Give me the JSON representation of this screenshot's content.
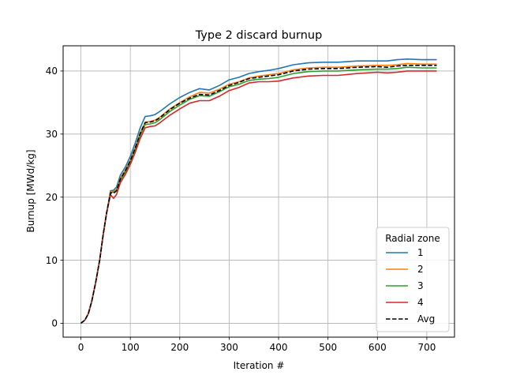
{
  "chart_data": {
    "type": "line",
    "title": "Type 2 discard burnup",
    "xlabel": "Iteration #",
    "ylabel": "Burnup [MWd/kg]",
    "xlim": [
      -36,
      756
    ],
    "ylim": [
      -2.2,
      44
    ],
    "xticks": [
      0,
      100,
      200,
      300,
      400,
      500,
      600,
      700
    ],
    "yticks": [
      0,
      10,
      20,
      30,
      40
    ],
    "grid": true,
    "legend": {
      "title": "Radial zone",
      "placement": "lower-right"
    },
    "series": [
      {
        "name": "1",
        "color": "#1f77b4",
        "dash": "solid",
        "x": [
          0,
          8,
          15,
          22,
          30,
          38,
          45,
          52,
          60,
          66,
          72,
          80,
          90,
          100,
          110,
          120,
          130,
          140,
          150,
          160,
          180,
          200,
          220,
          240,
          260,
          280,
          300,
          320,
          340,
          360,
          380,
          400,
          430,
          460,
          490,
          520,
          560,
          600,
          620,
          640,
          660,
          690,
          720
        ],
        "values": [
          0,
          0.5,
          1.5,
          3.5,
          6.5,
          10,
          14,
          17.5,
          21,
          21.1,
          21.6,
          23.5,
          24.8,
          26.5,
          28.6,
          31,
          32.8,
          32.9,
          33.1,
          33.6,
          34.8,
          35.8,
          36.6,
          37.2,
          37.0,
          37.7,
          38.6,
          39.0,
          39.6,
          39.9,
          40.1,
          40.4,
          41.0,
          41.3,
          41.4,
          41.4,
          41.6,
          41.6,
          41.6,
          41.8,
          41.9,
          41.8,
          41.8
        ]
      },
      {
        "name": "2",
        "color": "#ff7f0e",
        "dash": "solid",
        "x": [
          0,
          8,
          15,
          22,
          30,
          38,
          45,
          52,
          60,
          66,
          72,
          80,
          90,
          100,
          110,
          120,
          130,
          140,
          150,
          160,
          180,
          200,
          220,
          240,
          260,
          280,
          300,
          320,
          340,
          360,
          380,
          400,
          430,
          460,
          490,
          520,
          560,
          600,
          620,
          640,
          660,
          690,
          720
        ],
        "values": [
          0,
          0.5,
          1.5,
          3.5,
          6.5,
          10,
          14,
          17.5,
          20.8,
          20.9,
          21.2,
          23.0,
          24.3,
          25.9,
          27.9,
          30.2,
          31.9,
          32.0,
          32.2,
          32.7,
          34.0,
          35.0,
          35.9,
          36.6,
          36.5,
          37.1,
          37.9,
          38.3,
          38.9,
          39.2,
          39.4,
          39.6,
          40.2,
          40.5,
          40.6,
          40.6,
          40.8,
          40.9,
          40.9,
          41.0,
          41.2,
          41.1,
          41.1
        ]
      },
      {
        "name": "3",
        "color": "#2ca02c",
        "dash": "solid",
        "x": [
          0,
          8,
          15,
          22,
          30,
          38,
          45,
          52,
          60,
          66,
          72,
          80,
          90,
          100,
          110,
          120,
          130,
          140,
          150,
          160,
          180,
          200,
          220,
          240,
          260,
          280,
          300,
          320,
          340,
          360,
          380,
          400,
          430,
          460,
          490,
          520,
          560,
          600,
          620,
          640,
          660,
          690,
          720
        ],
        "values": [
          0,
          0.5,
          1.5,
          3.5,
          6.5,
          10,
          14,
          17.5,
          20.7,
          20.8,
          21.0,
          22.7,
          24.0,
          25.6,
          27.6,
          29.8,
          31.5,
          31.6,
          31.8,
          32.3,
          33.6,
          34.6,
          35.5,
          36.1,
          36.0,
          36.7,
          37.5,
          37.9,
          38.5,
          38.7,
          38.8,
          39.0,
          39.6,
          39.9,
          40.0,
          40.0,
          40.2,
          40.3,
          40.3,
          40.4,
          40.6,
          40.5,
          40.5
        ]
      },
      {
        "name": "4",
        "color": "#d62728",
        "dash": "solid",
        "x": [
          0,
          8,
          15,
          22,
          30,
          38,
          45,
          52,
          60,
          66,
          72,
          80,
          90,
          100,
          110,
          120,
          130,
          140,
          150,
          160,
          180,
          200,
          220,
          240,
          260,
          280,
          300,
          320,
          340,
          360,
          380,
          400,
          430,
          460,
          490,
          520,
          560,
          600,
          620,
          640,
          660,
          690,
          720
        ],
        "values": [
          0,
          0.5,
          1.5,
          3.5,
          6.5,
          10,
          14,
          17.5,
          20.4,
          19.8,
          20.4,
          22.3,
          23.6,
          25.2,
          27.1,
          29.3,
          31.0,
          31.2,
          31.3,
          31.8,
          33.0,
          34.0,
          34.9,
          35.3,
          35.3,
          36.0,
          36.9,
          37.4,
          38.1,
          38.3,
          38.3,
          38.4,
          38.9,
          39.2,
          39.3,
          39.3,
          39.6,
          39.8,
          39.7,
          39.8,
          40.0,
          40.0,
          40.0
        ]
      },
      {
        "name": "Avg",
        "color": "#000000",
        "dash": "dashed",
        "x": [
          0,
          8,
          15,
          22,
          30,
          38,
          45,
          52,
          60,
          66,
          72,
          80,
          90,
          100,
          110,
          120,
          130,
          140,
          150,
          160,
          180,
          200,
          220,
          240,
          260,
          280,
          300,
          320,
          340,
          360,
          380,
          400,
          430,
          460,
          490,
          520,
          560,
          600,
          620,
          640,
          660,
          690,
          720
        ],
        "values": [
          0,
          0.5,
          1.5,
          3.5,
          6.5,
          10,
          14,
          17.5,
          20.7,
          20.6,
          21.0,
          22.9,
          24.2,
          25.8,
          27.8,
          30.1,
          31.8,
          31.9,
          32.1,
          32.6,
          33.9,
          34.9,
          35.7,
          36.3,
          36.2,
          36.9,
          37.7,
          38.2,
          38.8,
          39.0,
          39.2,
          39.4,
          40.0,
          40.3,
          40.4,
          40.4,
          40.6,
          40.7,
          40.6,
          40.8,
          40.9,
          40.9,
          40.9
        ]
      }
    ]
  }
}
